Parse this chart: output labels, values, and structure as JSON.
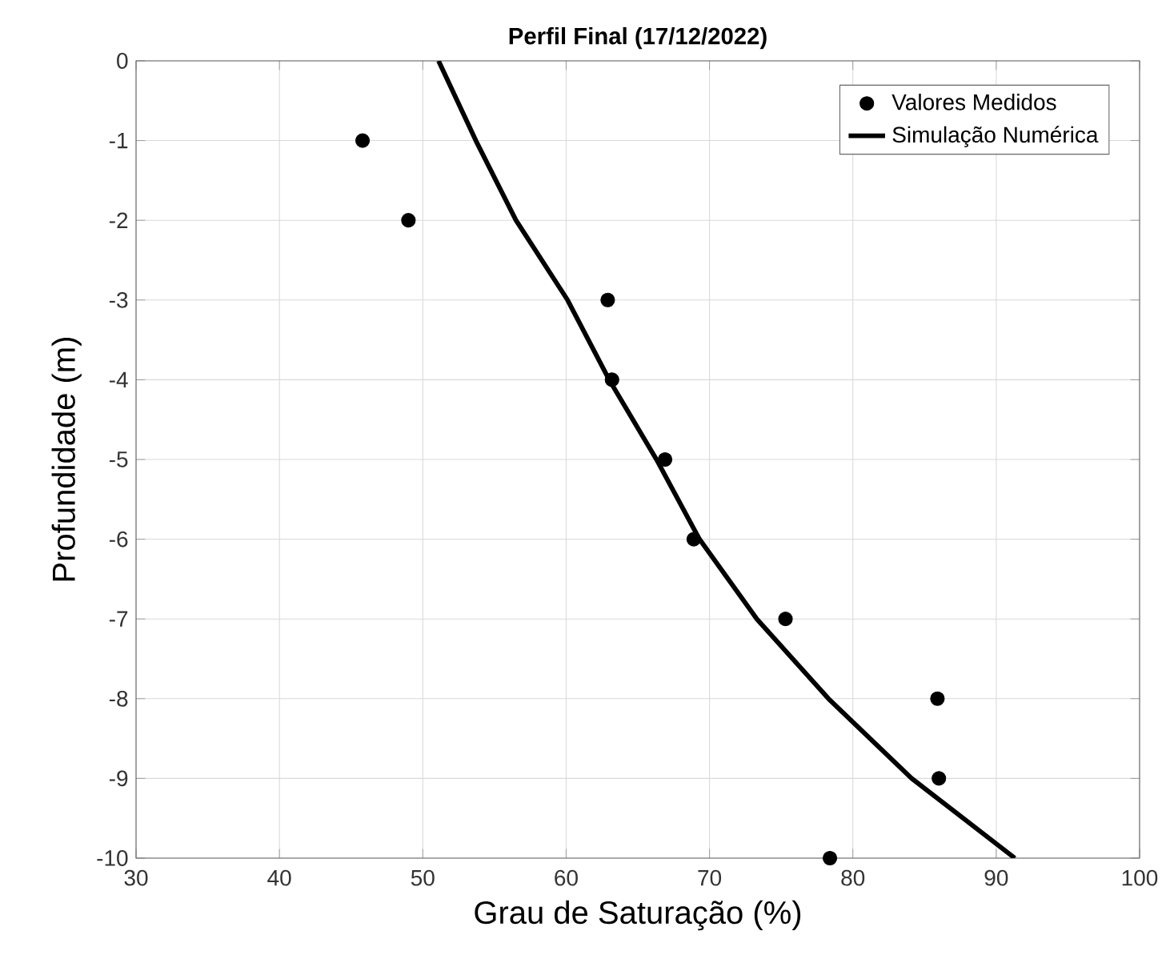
{
  "chart_data": {
    "type": "scatter",
    "title": "Perfil Final (17/12/2022)",
    "xlabel": "Grau de Saturação (%)",
    "ylabel": "Profundidade (m)",
    "xlim": [
      30,
      100
    ],
    "ylim": [
      -10,
      0
    ],
    "xticks": [
      30,
      40,
      50,
      60,
      70,
      80,
      90,
      100
    ],
    "yticks": [
      -10,
      -9,
      -8,
      -7,
      -6,
      -5,
      -4,
      -3,
      -2,
      -1,
      0
    ],
    "grid": true,
    "legend": "top right",
    "series": [
      {
        "name": "Valores Medidos",
        "marker": "circle",
        "color": "#000000",
        "x": [
          45.8,
          49.0,
          62.9,
          63.2,
          66.9,
          68.9,
          75.3,
          85.9,
          86.0,
          78.4
        ],
        "values": [
          -1,
          -2,
          -3,
          -4,
          -5,
          -6,
          -7,
          -8,
          -9,
          -10
        ]
      },
      {
        "name": "Simulação Numérica",
        "type": "line",
        "color": "#000000",
        "line_style": "solid",
        "marker": "none",
        "x": [
          51.1,
          53.7,
          56.5,
          60.1,
          63.0,
          66.3,
          69.3,
          73.3,
          78.3,
          84.1,
          91.3
        ],
        "values": [
          0,
          -1,
          -2,
          -3,
          -4,
          -5,
          -6,
          -7,
          -8,
          -9,
          -10
        ]
      }
    ]
  }
}
